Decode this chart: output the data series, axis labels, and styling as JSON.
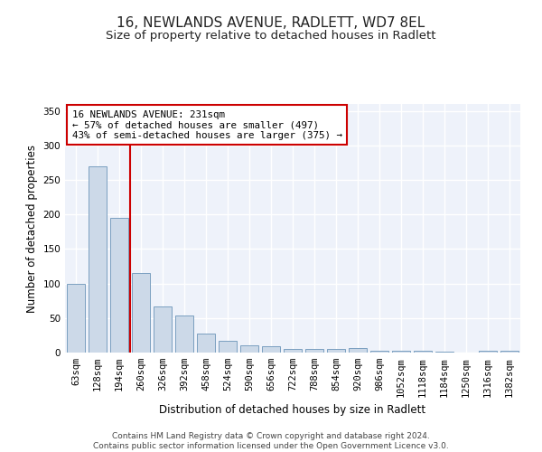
{
  "title": "16, NEWLANDS AVENUE, RADLETT, WD7 8EL",
  "subtitle": "Size of property relative to detached houses in Radlett",
  "xlabel": "Distribution of detached houses by size in Radlett",
  "ylabel": "Number of detached properties",
  "bar_color": "#ccd9e8",
  "bar_edge_color": "#7a9fc0",
  "background_color": "#eef2fa",
  "grid_color": "#ffffff",
  "categories": [
    "63sqm",
    "128sqm",
    "194sqm",
    "260sqm",
    "326sqm",
    "392sqm",
    "458sqm",
    "524sqm",
    "590sqm",
    "656sqm",
    "722sqm",
    "788sqm",
    "854sqm",
    "920sqm",
    "986sqm",
    "1052sqm",
    "1118sqm",
    "1184sqm",
    "1250sqm",
    "1316sqm",
    "1382sqm"
  ],
  "values": [
    100,
    270,
    195,
    115,
    67,
    54,
    28,
    17,
    10,
    9,
    5,
    5,
    5,
    6,
    2,
    2,
    2,
    1,
    0,
    3,
    2
  ],
  "vline_x": 2.5,
  "vline_color": "#cc0000",
  "annotation_line1": "16 NEWLANDS AVENUE: 231sqm",
  "annotation_line2": "← 57% of detached houses are smaller (497)",
  "annotation_line3": "43% of semi-detached houses are larger (375) →",
  "annotation_box_color": "#ffffff",
  "annotation_box_edge": "#cc0000",
  "ylim": [
    0,
    360
  ],
  "yticks": [
    0,
    50,
    100,
    150,
    200,
    250,
    300,
    350
  ],
  "footer_text": "Contains HM Land Registry data © Crown copyright and database right 2024.\nContains public sector information licensed under the Open Government Licence v3.0.",
  "title_fontsize": 11,
  "subtitle_fontsize": 9.5,
  "axis_label_fontsize": 8.5,
  "tick_fontsize": 7.5,
  "annotation_fontsize": 7.8,
  "footer_fontsize": 6.5
}
